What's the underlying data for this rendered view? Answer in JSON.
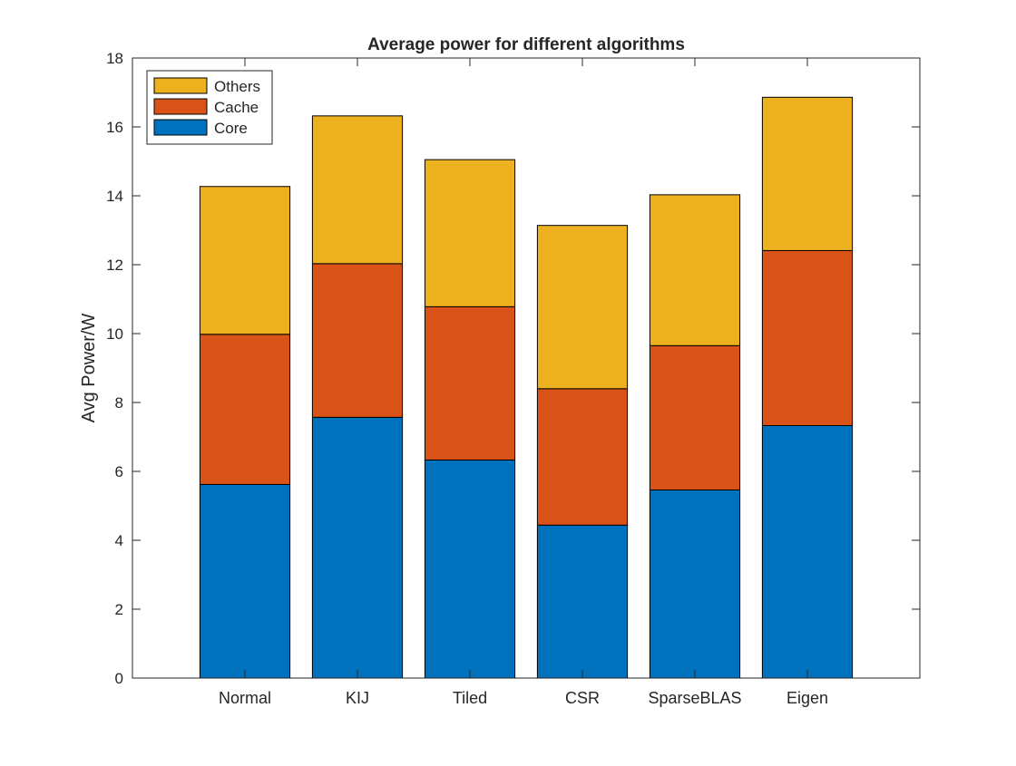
{
  "chart_data": {
    "type": "bar",
    "stacked": true,
    "title": "Average power for different algorithms",
    "xlabel": "",
    "ylabel": "Avg Power/W",
    "categories": [
      "Normal",
      "KIJ",
      "Tiled",
      "CSR",
      "SparseBLAS",
      "Eigen"
    ],
    "series": [
      {
        "name": "Core",
        "color": "#0072bd",
        "values": [
          5.62,
          7.57,
          6.33,
          4.44,
          5.46,
          7.33
        ]
      },
      {
        "name": "Cache",
        "color": "#d95319",
        "values": [
          4.36,
          4.46,
          4.45,
          3.96,
          4.19,
          5.08
        ]
      },
      {
        "name": "Others",
        "color": "#edb120",
        "values": [
          4.29,
          4.29,
          4.27,
          4.74,
          4.38,
          4.45
        ]
      }
    ],
    "ylim": [
      0,
      18
    ],
    "yticks": [
      0,
      2,
      4,
      6,
      8,
      10,
      12,
      14,
      16,
      18
    ],
    "grid": false,
    "legend": {
      "position": "top-left",
      "order": [
        "Others",
        "Cache",
        "Core"
      ]
    }
  }
}
